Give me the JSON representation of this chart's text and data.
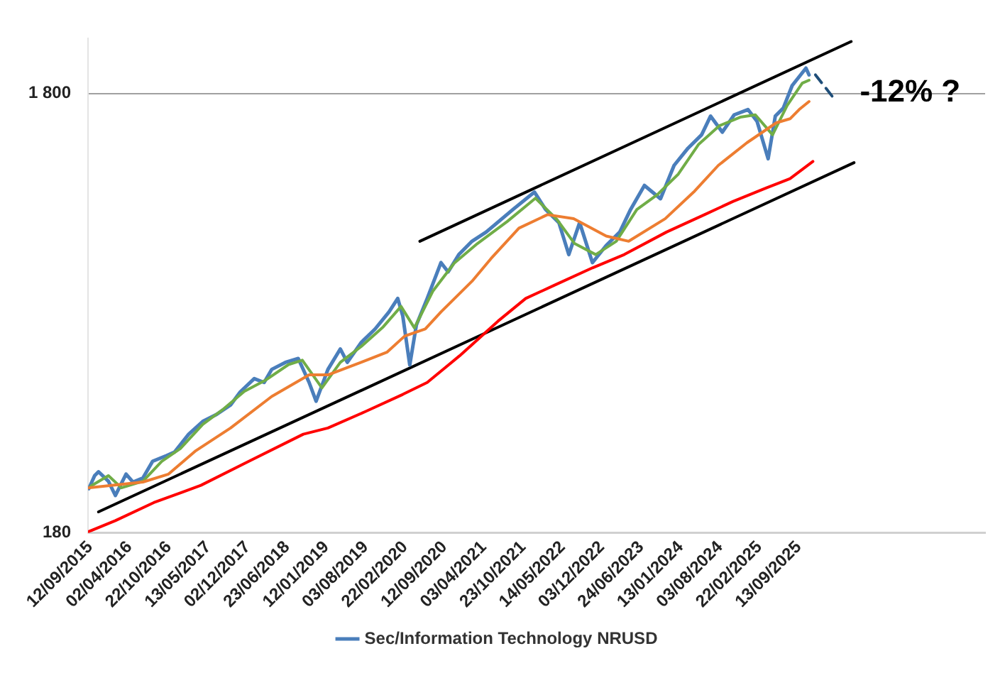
{
  "chart_data": {
    "type": "line",
    "log": "y",
    "grid": "y",
    "legend": "bottom",
    "marker": "none",
    "line_style": "solid",
    "xlim": [
      "2015-09-01",
      "2028-05-01"
    ],
    "ylim": [
      180,
      2400
    ],
    "xticks": [
      {
        "value": "2015-09-12",
        "label": "12/09/2015"
      },
      {
        "value": "2016-04-02",
        "label": "02/04/2016"
      },
      {
        "value": "2016-10-22",
        "label": "22/10/2016"
      },
      {
        "value": "2017-05-13",
        "label": "13/05/2017"
      },
      {
        "value": "2017-12-02",
        "label": "02/12/2017"
      },
      {
        "value": "2018-06-23",
        "label": "23/06/2018"
      },
      {
        "value": "2019-01-12",
        "label": "12/01/2019"
      },
      {
        "value": "2019-08-03",
        "label": "03/08/2019"
      },
      {
        "value": "2020-02-22",
        "label": "22/02/2020"
      },
      {
        "value": "2020-09-12",
        "label": "12/09/2020"
      },
      {
        "value": "2021-04-03",
        "label": "03/04/2021"
      },
      {
        "value": "2021-10-23",
        "label": "23/10/2021"
      },
      {
        "value": "2022-05-14",
        "label": "14/05/2022"
      },
      {
        "value": "2022-12-03",
        "label": "03/12/2022"
      },
      {
        "value": "2023-06-24",
        "label": "24/06/2023"
      },
      {
        "value": "2024-01-13",
        "label": "13/01/2024"
      },
      {
        "value": "2024-08-03",
        "label": "03/08/2024"
      },
      {
        "value": "2025-02-22",
        "label": "22/02/2025"
      },
      {
        "value": "2025-09-13",
        "label": "13/09/2025"
      }
    ],
    "yticks": [
      180,
      {
        "value": 1800,
        "label": "1 800"
      }
    ],
    "annotations": [
      {
        "text": "-12% ?",
        "x": "2026-03-15",
        "y": 1750
      }
    ],
    "series": [
      {
        "color": "#ff0000",
        "x": [
          "2015-09-01",
          "2016-01-20",
          "2016-08-05",
          "2017-04-05",
          "2017-12-01",
          "2018-09-15",
          "2019-01-20",
          "2019-08-01",
          "2020-02-10",
          "2020-06-15",
          "2020-11-28",
          "2021-06-15",
          "2021-11-05",
          "2022-04-01",
          "2022-10-15",
          "2023-03-28",
          "2023-11-01",
          "2024-05-15",
          "2024-10-10",
          "2025-03-28",
          "2025-07-30",
          "2025-11-25"
        ],
        "values": [
          181,
          192,
          211,
          231,
          261,
          302,
          312,
          340,
          372,
          396,
          455,
          546,
          615,
          659,
          722,
          774,
          871,
          954,
          1023,
          1097,
          1152,
          1261
        ]
      },
      {
        "color": "#ed7d31",
        "x": [
          "2015-09-01",
          "2016-06-10",
          "2016-10-20",
          "2017-03-10",
          "2017-09-05",
          "2018-04-05",
          "2018-10-15",
          "2019-01-20",
          "2019-07-10",
          "2019-11-20",
          "2020-02-20",
          "2020-06-05",
          "2020-08-25",
          "2021-02-01",
          "2021-05-10",
          "2021-10-01",
          "2022-02-25",
          "2022-07-10",
          "2022-12-25",
          "2023-04-20",
          "2023-10-25",
          "2024-03-20",
          "2024-07-25",
          "2024-12-20",
          "2025-05-20",
          "2025-07-30",
          "2025-09-15",
          "2025-11-05"
        ],
        "values": [
          228,
          235,
          245,
          277,
          312,
          368,
          412,
          412,
          440,
          464,
          505,
          524,
          573,
          673,
          758,
          889,
          954,
          934,
          853,
          830,
          934,
          1074,
          1235,
          1391,
          1544,
          1577,
          1655,
          1726
        ]
      },
      {
        "color": "#70ad47",
        "x": [
          "2015-09-15",
          "2015-12-15",
          "2016-02-20",
          "2016-06-10",
          "2016-09-15",
          "2016-12-20",
          "2017-04-15",
          "2017-08-01",
          "2017-11-15",
          "2018-03-01",
          "2018-07-01",
          "2018-09-10",
          "2018-12-20",
          "2019-03-25",
          "2019-07-10",
          "2019-11-01",
          "2020-02-01",
          "2020-04-10",
          "2020-07-15",
          "2020-11-01",
          "2021-03-01",
          "2021-08-01",
          "2021-12-25",
          "2022-04-15",
          "2022-07-15",
          "2022-11-01",
          "2023-02-15",
          "2023-06-01",
          "2023-09-15",
          "2024-01-01",
          "2024-04-15",
          "2024-07-30",
          "2024-11-15",
          "2025-02-01",
          "2025-05-01",
          "2025-07-15",
          "2025-10-01",
          "2025-11-05"
        ],
        "values": [
          230,
          243,
          228,
          236,
          262,
          280,
          318,
          345,
          378,
          400,
          435,
          445,
          385,
          440,
          478,
          530,
          590,
          527,
          640,
          740,
          820,
          920,
          1040,
          930,
          820,
          774,
          830,
          980,
          1060,
          1180,
          1380,
          1520,
          1590,
          1610,
          1450,
          1690,
          1900,
          1930
        ]
      },
      {
        "name": "Sec/Information Technology NRUSD",
        "color": "#4a7ebb",
        "x": [
          "2015-09-05",
          "2015-10-05",
          "2015-10-25",
          "2015-12-15",
          "2016-01-20",
          "2016-03-15",
          "2016-04-20",
          "2016-06-10",
          "2016-07-30",
          "2016-10-10",
          "2016-11-20",
          "2017-02-01",
          "2017-04-15",
          "2017-06-25",
          "2017-09-05",
          "2017-10-25",
          "2018-01-05",
          "2018-02-25",
          "2018-04-05",
          "2018-06-15",
          "2018-08-20",
          "2018-10-15",
          "2018-11-20",
          "2019-01-20",
          "2019-03-25",
          "2019-04-30",
          "2019-07-10",
          "2019-09-20",
          "2019-12-01",
          "2020-01-15",
          "2020-02-10",
          "2020-03-17",
          "2020-04-20",
          "2020-06-15",
          "2020-08-25",
          "2020-10-01",
          "2020-11-25",
          "2021-02-01",
          "2021-04-15",
          "2021-09-01",
          "2021-12-20",
          "2022-02-15",
          "2022-04-25",
          "2022-06-15",
          "2022-08-10",
          "2022-10-15",
          "2022-12-25",
          "2023-03-05",
          "2023-04-30",
          "2023-07-10",
          "2023-10-01",
          "2023-12-10",
          "2024-02-20",
          "2024-04-30",
          "2024-06-15",
          "2024-08-15",
          "2024-10-15",
          "2024-12-25",
          "2025-02-10",
          "2025-04-08",
          "2025-05-15",
          "2025-06-25",
          "2025-08-10",
          "2025-10-20",
          "2025-11-05"
        ],
        "values": [
          227,
          243,
          248,
          236,
          219,
          245,
          235,
          240,
          262,
          270,
          275,
          302,
          323,
          335,
          352,
          377,
          404,
          396,
          424,
          440,
          449,
          396,
          359,
          424,
          472,
          440,
          488,
          524,
          573,
          615,
          561,
          434,
          535,
          615,
          742,
          707,
          774,
          830,
          871,
          981,
          1074,
          981,
          915,
          774,
          915,
          742,
          812,
          871,
          981,
          1112,
          1037,
          1235,
          1352,
          1450,
          1599,
          1470,
          1610,
          1655,
          1555,
          1279,
          1599,
          1667,
          1877,
          2056,
          1985
        ]
      },
      {
        "color": "#000000",
        "x": [
          "2015-10-25",
          "2026-06-25"
        ],
        "values": [
          201,
          1253
        ]
      },
      {
        "color": "#000000",
        "x": [
          "2020-05-08",
          "2026-06-10"
        ],
        "values": [
          830,
          2364
        ]
      },
      {
        "color": "#1f4e79",
        "line_style": "dashed",
        "x": [
          "2025-12-08",
          "2026-03-15"
        ],
        "values": [
          1985,
          1750
        ]
      }
    ]
  }
}
